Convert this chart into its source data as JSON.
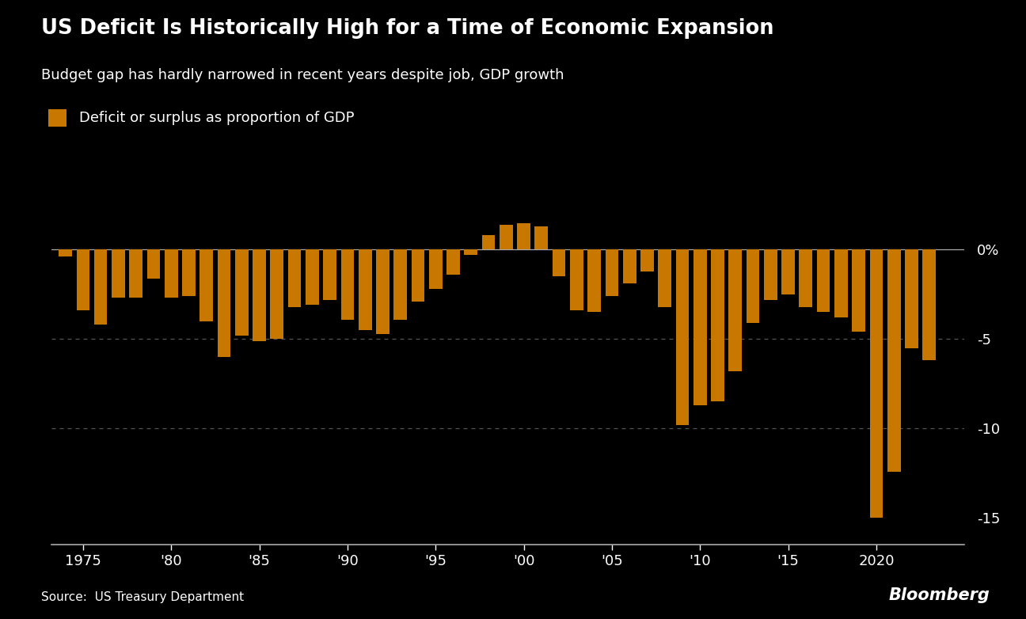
{
  "title": "US Deficit Is Historically High for a Time of Economic Expansion",
  "subtitle": "Budget gap has hardly narrowed in recent years despite job, GDP growth",
  "legend_label": "Deficit or surplus as proportion of GDP",
  "source": "Source:  US Treasury Department",
  "bloomberg": "Bloomberg",
  "bar_color": "#C87800",
  "background_color": "#000000",
  "text_color": "#ffffff",
  "grid_color": "#555555",
  "axis_color": "#aaaaaa",
  "zero_line_color": "#aaaaaa",
  "years": [
    1974,
    1975,
    1976,
    1977,
    1978,
    1979,
    1980,
    1981,
    1982,
    1983,
    1984,
    1985,
    1986,
    1987,
    1988,
    1989,
    1990,
    1991,
    1992,
    1993,
    1994,
    1995,
    1996,
    1997,
    1998,
    1999,
    2000,
    2001,
    2002,
    2003,
    2004,
    2005,
    2006,
    2007,
    2008,
    2009,
    2010,
    2011,
    2012,
    2013,
    2014,
    2015,
    2016,
    2017,
    2018,
    2019,
    2020,
    2021,
    2022,
    2023
  ],
  "values": [
    -0.4,
    -3.4,
    -4.2,
    -2.7,
    -2.7,
    -1.6,
    -2.7,
    -2.6,
    -4.0,
    -6.0,
    -4.8,
    -5.1,
    -5.0,
    -3.2,
    -3.1,
    -2.8,
    -3.9,
    -4.5,
    -4.7,
    -3.9,
    -2.9,
    -2.2,
    -1.4,
    -0.3,
    0.8,
    1.4,
    2.4,
    1.3,
    -1.5,
    -3.4,
    -3.5,
    -2.6,
    -1.9,
    -1.2,
    -3.2,
    -9.8,
    -8.7,
    -8.5,
    -6.8,
    -4.1,
    -2.8,
    -2.5,
    -3.2,
    -3.5,
    -3.8,
    -4.6,
    -15.0,
    -12.4,
    -5.5,
    -6.2
  ],
  "yticks": [
    0,
    -5,
    -10,
    -15
  ],
  "ylim": [
    -16.5,
    1.5
  ],
  "xlim": [
    1973.2,
    2025.0
  ],
  "xtick_years": [
    1975,
    1980,
    1985,
    1990,
    1995,
    2000,
    2005,
    2010,
    2015,
    2020
  ],
  "xtick_labels": [
    "1975",
    "'80",
    "'85",
    "'90",
    "'95",
    "'00",
    "'05",
    "'10",
    "'15",
    "2020"
  ]
}
